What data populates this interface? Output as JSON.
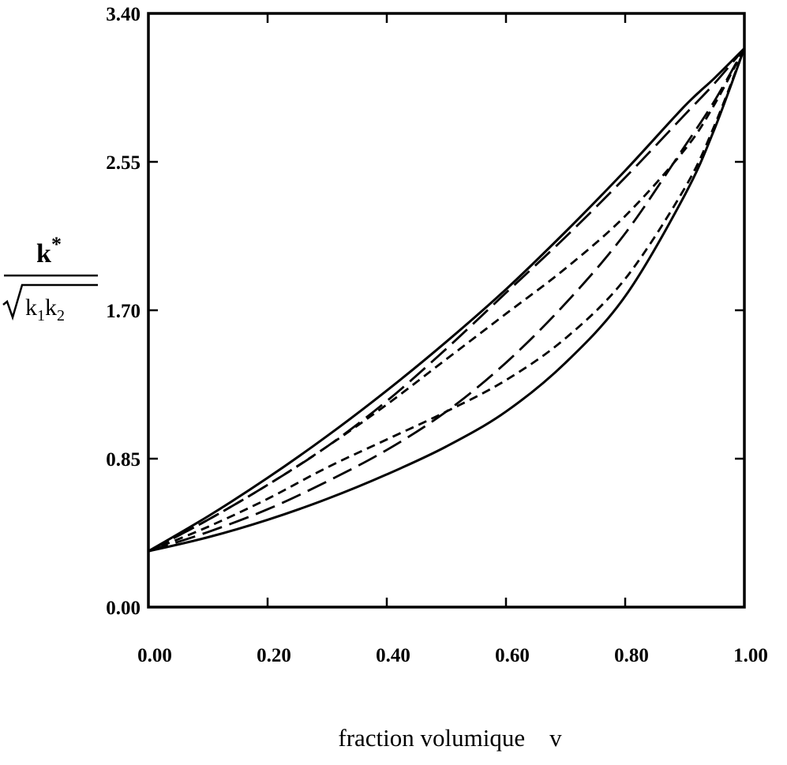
{
  "chart_data": {
    "type": "line",
    "title": "",
    "xlabel": "fraction volumique    v",
    "ylabel": {
      "numerator_base": "k",
      "numerator_sup": "*",
      "denominator_k1": "k",
      "denominator_k1_sub": "1",
      "denominator_k2": "k",
      "denominator_k2_sub": "2"
    },
    "xlim": [
      0.0,
      1.0
    ],
    "ylim": [
      0.0,
      3.4
    ],
    "x_ticks": [
      "0.00",
      "0.20",
      "0.40",
      "0.60",
      "0.80",
      "1.00"
    ],
    "y_ticks": [
      "0.00",
      "0.85",
      "1.70",
      "2.55",
      "3.40"
    ],
    "x_tick_values": [
      0.0,
      0.2,
      0.4,
      0.6,
      0.8,
      1.0
    ],
    "y_tick_values": [
      0.0,
      0.85,
      1.7,
      2.55,
      3.4
    ],
    "grid": false,
    "legend": "none",
    "series": [
      {
        "style": "solid",
        "x": [
          0.0,
          0.1,
          0.2,
          0.3,
          0.4,
          0.5,
          0.6,
          0.7,
          0.8,
          0.9,
          0.95,
          1.0
        ],
        "y": [
          0.32,
          0.52,
          0.74,
          0.98,
          1.24,
          1.52,
          1.82,
          2.15,
          2.5,
          2.87,
          3.03,
          3.2
        ]
      },
      {
        "style": "long-dash",
        "x": [
          0.0,
          0.1,
          0.2,
          0.3,
          0.4,
          0.5,
          0.6,
          0.7,
          0.8,
          0.9,
          0.95,
          1.0
        ],
        "y": [
          0.32,
          0.5,
          0.7,
          0.92,
          1.18,
          1.48,
          1.8,
          2.12,
          2.46,
          2.82,
          3.0,
          3.2
        ]
      },
      {
        "style": "short-dash",
        "x": [
          0.0,
          0.1,
          0.2,
          0.3,
          0.4,
          0.5,
          0.6,
          0.7,
          0.8,
          0.9,
          0.95,
          1.0
        ],
        "y": [
          0.32,
          0.5,
          0.7,
          0.92,
          1.16,
          1.42,
          1.68,
          1.94,
          2.24,
          2.62,
          2.88,
          3.2
        ]
      },
      {
        "style": "long-dash",
        "x": [
          0.0,
          0.1,
          0.2,
          0.3,
          0.4,
          0.5,
          0.6,
          0.7,
          0.8,
          0.9,
          0.95,
          1.0
        ],
        "y": [
          0.32,
          0.43,
          0.56,
          0.72,
          0.9,
          1.12,
          1.4,
          1.74,
          2.14,
          2.64,
          2.9,
          3.2
        ]
      },
      {
        "style": "short-dash",
        "x": [
          0.0,
          0.1,
          0.2,
          0.3,
          0.4,
          0.5,
          0.6,
          0.7,
          0.8,
          0.9,
          0.95,
          1.0
        ],
        "y": [
          0.32,
          0.46,
          0.62,
          0.8,
          0.96,
          1.12,
          1.3,
          1.54,
          1.88,
          2.4,
          2.76,
          3.2
        ]
      },
      {
        "style": "solid",
        "x": [
          0.0,
          0.1,
          0.2,
          0.3,
          0.4,
          0.5,
          0.6,
          0.7,
          0.8,
          0.9,
          0.95,
          1.0
        ],
        "y": [
          0.32,
          0.4,
          0.5,
          0.62,
          0.76,
          0.92,
          1.12,
          1.4,
          1.78,
          2.36,
          2.74,
          3.2
        ]
      }
    ],
    "line_color": "#000000"
  }
}
